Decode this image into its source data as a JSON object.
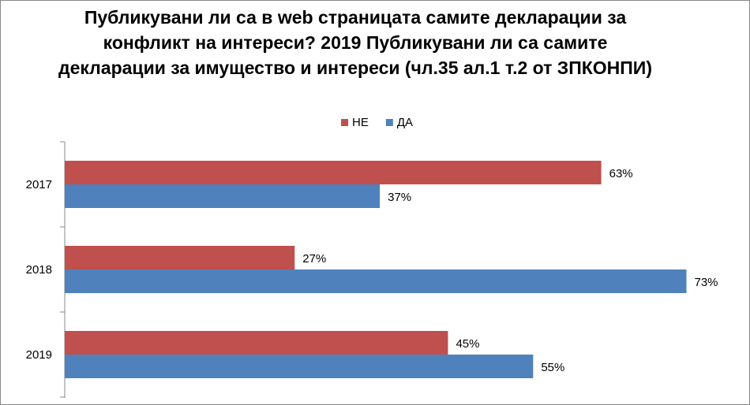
{
  "chart_data": {
    "type": "bar",
    "orientation": "horizontal",
    "title": "Публикувани ли са в web страницата самите декларации за конфликт на интереси? 2019 Публикувани ли са самите декларации за имущество и интереси (чл.35 ал.1 т.2 от ЗПКОНПИ)",
    "categories": [
      "2017",
      "2018",
      "2019"
    ],
    "series": [
      {
        "name": "НЕ",
        "color": "#c0504d",
        "values": [
          63,
          27,
          45
        ],
        "value_labels": [
          "63%",
          "27%",
          "45%"
        ]
      },
      {
        "name": "ДА",
        "color": "#4f81bd",
        "values": [
          37,
          73,
          55
        ],
        "value_labels": [
          "37%",
          "73%",
          "55%"
        ]
      }
    ],
    "xlim": [
      0,
      80
    ],
    "legend": "top"
  }
}
